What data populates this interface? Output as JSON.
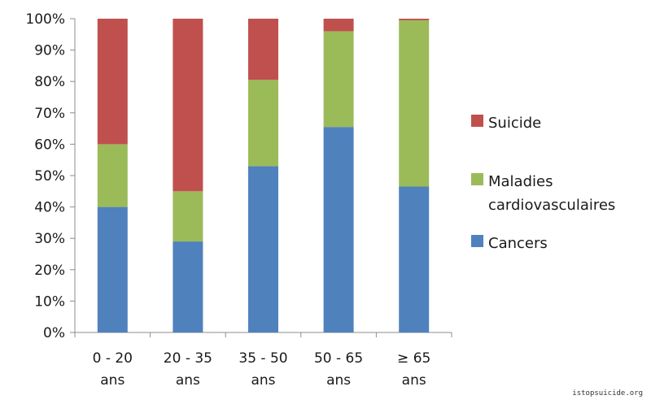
{
  "chart_data": {
    "type": "bar",
    "stacked": true,
    "categories": [
      [
        "0 - 20",
        "ans"
      ],
      [
        "20 - 35",
        "ans"
      ],
      [
        "35 - 50",
        "ans"
      ],
      [
        "50 - 65",
        "ans"
      ],
      [
        "≥ 65",
        "ans"
      ]
    ],
    "series": [
      {
        "name": "Cancers",
        "color": "#4f81bd",
        "values": [
          40,
          29,
          53,
          65.5,
          46.5
        ]
      },
      {
        "name": "Maladies cardiovasculaires",
        "color": "#9bbb59",
        "values": [
          20,
          16,
          27.5,
          30.5,
          53
        ]
      },
      {
        "name": "Suicide",
        "color": "#c0504d",
        "values": [
          40,
          55,
          19.5,
          4,
          0.5
        ]
      }
    ],
    "y_ticks": [
      "0%",
      "10%",
      "20%",
      "30%",
      "40%",
      "50%",
      "60%",
      "70%",
      "80%",
      "90%",
      "100%"
    ],
    "ylim": [
      0,
      100
    ],
    "grid": false,
    "legend_position": "right",
    "legend_order": [
      "Suicide",
      "Maladies cardiovasculaires",
      "Cancers"
    ],
    "legend_labels": {
      "Suicide": [
        "Suicide"
      ],
      "Maladies cardiovasculaires": [
        "Maladies",
        "cardiovasculaires"
      ],
      "Cancers": [
        "Cancers"
      ]
    }
  },
  "watermark": "istopsuicide.org"
}
